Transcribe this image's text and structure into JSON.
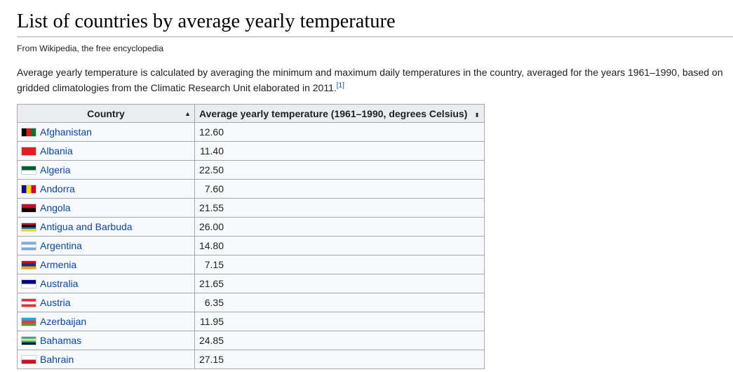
{
  "article": {
    "title": "List of countries by average yearly temperature",
    "tagline": "From Wikipedia, the free encyclopedia",
    "intro": "Average yearly temperature is calculated by averaging the minimum and maximum daily temperatures in the country, averaged for the years 1961–1990, based on gridded climatologies from the Climatic Research Unit elaborated in 2011.",
    "ref_label": "[1]"
  },
  "table": {
    "headers": {
      "country": "Country",
      "temperature": "Average yearly temperature (1961–1990, degrees Celsius)"
    },
    "sort_icons": {
      "country": "▲",
      "temperature": "⬍"
    },
    "rows": [
      {
        "country": "Afghanistan",
        "temp": "12.60",
        "flag": "flag-afghanistan-icon",
        "colors": [
          "#000000",
          "#d32011",
          "#007a36"
        ]
      },
      {
        "country": "Albania",
        "temp": "11.40",
        "flag": "flag-albania-icon",
        "colors": [
          "#e41e20"
        ]
      },
      {
        "country": "Algeria",
        "temp": "22.50",
        "flag": "flag-algeria-icon",
        "colors": [
          "#006233",
          "#ffffff"
        ]
      },
      {
        "country": "Andorra",
        "temp": "7.60",
        "flag": "flag-andorra-icon",
        "colors": [
          "#10069f",
          "#fedd00",
          "#d50032"
        ]
      },
      {
        "country": "Angola",
        "temp": "21.55",
        "flag": "flag-angola-icon",
        "colors": [
          "#cc092f",
          "#000000"
        ]
      },
      {
        "country": "Antigua and Barbuda",
        "temp": "26.00",
        "flag": "flag-antigua-and-barbuda-icon",
        "colors": [
          "#ce1126",
          "#000000",
          "#0072c6",
          "#fcd116"
        ]
      },
      {
        "country": "Argentina",
        "temp": "14.80",
        "flag": "flag-argentina-icon",
        "colors": [
          "#74acdf",
          "#ffffff",
          "#74acdf"
        ]
      },
      {
        "country": "Armenia",
        "temp": "7.15",
        "flag": "flag-armenia-icon",
        "colors": [
          "#d90012",
          "#0033a0",
          "#f2a800"
        ]
      },
      {
        "country": "Australia",
        "temp": "21.65",
        "flag": "flag-australia-icon",
        "colors": [
          "#00008b",
          "#ffffff"
        ]
      },
      {
        "country": "Austria",
        "temp": "6.35",
        "flag": "flag-austria-icon",
        "colors": [
          "#ed2939",
          "#ffffff",
          "#ed2939"
        ]
      },
      {
        "country": "Azerbaijan",
        "temp": "11.95",
        "flag": "flag-azerbaijan-icon",
        "colors": [
          "#00b5e2",
          "#ef3340",
          "#509e2f"
        ]
      },
      {
        "country": "Bahamas",
        "temp": "24.85",
        "flag": "flag-bahamas-icon",
        "colors": [
          "#00abc9",
          "#fae042",
          "#00abc9",
          "#000000"
        ]
      },
      {
        "country": "Bahrain",
        "temp": "27.15",
        "flag": "flag-bahrain-icon",
        "colors": [
          "#ffffff",
          "#ce1126"
        ]
      }
    ]
  }
}
